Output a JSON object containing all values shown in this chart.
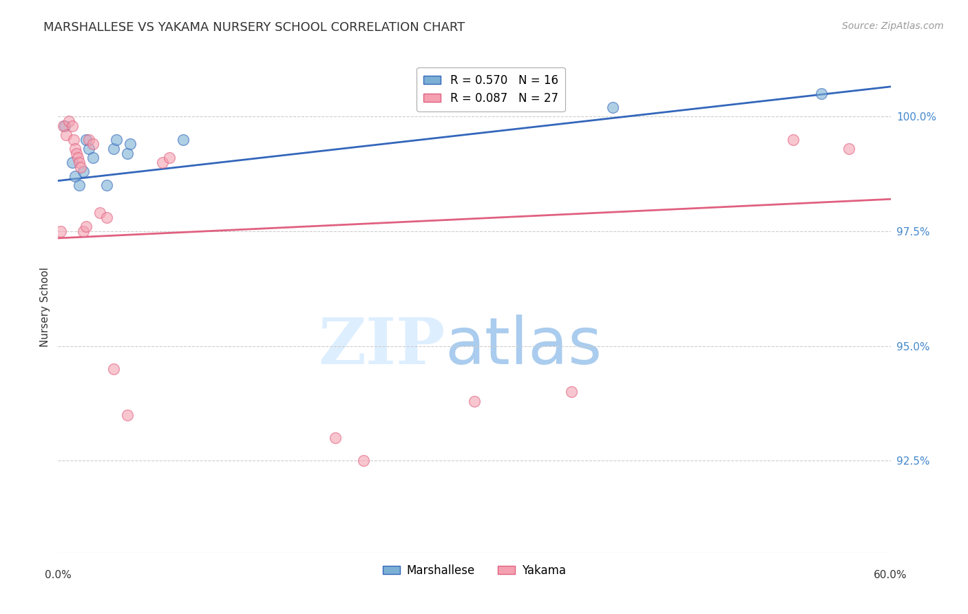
{
  "title": "MARSHALLESE VS YAKAMA NURSERY SCHOOL CORRELATION CHART",
  "source": "Source: ZipAtlas.com",
  "ylabel": "Nursery School",
  "xlim": [
    0.0,
    60.0
  ],
  "ylim": [
    90.5,
    101.2
  ],
  "yticks": [
    92.5,
    95.0,
    97.5,
    100.0
  ],
  "ytick_labels": [
    "92.5%",
    "95.0%",
    "97.5%",
    "100.0%"
  ],
  "blue_color": "#7BAFD4",
  "pink_color": "#F4A0B0",
  "blue_line_color": "#3366BB",
  "pink_line_color": "#E06080",
  "blue_R": 0.57,
  "blue_N": 16,
  "pink_R": 0.087,
  "pink_N": 27,
  "blue_label": "Marshallese",
  "pink_label": "Yakama",
  "blue_x": [
    0.5,
    1.0,
    1.2,
    1.5,
    1.8,
    2.0,
    2.2,
    2.5,
    3.5,
    4.0,
    4.2,
    5.0,
    5.2,
    9.0,
    40.0,
    55.0
  ],
  "blue_y": [
    99.8,
    99.0,
    98.7,
    98.5,
    98.8,
    99.5,
    99.3,
    99.1,
    98.5,
    99.3,
    99.5,
    99.2,
    99.4,
    99.5,
    100.2,
    100.5
  ],
  "pink_x": [
    0.2,
    0.4,
    0.6,
    0.8,
    1.0,
    1.1,
    1.2,
    1.3,
    1.4,
    1.5,
    1.6,
    1.8,
    2.0,
    2.2,
    2.5,
    3.0,
    3.5,
    4.0,
    5.0,
    7.5,
    8.0,
    20.0,
    22.0,
    30.0,
    37.0,
    53.0,
    57.0
  ],
  "pink_y": [
    97.5,
    99.8,
    99.6,
    99.9,
    99.8,
    99.5,
    99.3,
    99.2,
    99.1,
    99.0,
    98.9,
    97.5,
    97.6,
    99.5,
    99.4,
    97.9,
    97.8,
    94.5,
    93.5,
    99.0,
    99.1,
    93.0,
    92.5,
    93.8,
    94.0,
    99.5,
    99.3
  ],
  "blue_line_x": [
    0.0,
    60.0
  ],
  "blue_line_y": [
    98.6,
    100.65
  ],
  "pink_line_x": [
    0.0,
    60.0
  ],
  "pink_line_y": [
    97.35,
    98.2
  ],
  "title_color": "#333333",
  "source_color": "#999999",
  "grid_color": "#cccccc",
  "tick_color": "#4488CC",
  "background": "#ffffff"
}
